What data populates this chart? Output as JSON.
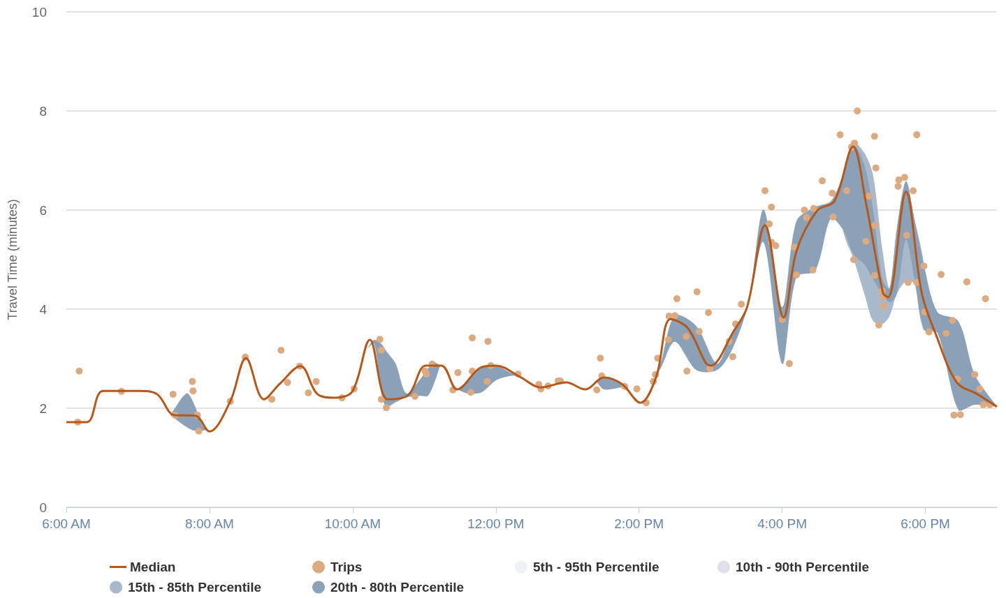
{
  "chart_data": {
    "type": "line",
    "ylabel": "Travel Time (minutes)",
    "xlim": [
      6,
      19
    ],
    "xticks": [
      {
        "value": 6,
        "label": "6:00 AM"
      },
      {
        "value": 8,
        "label": "8:00 AM"
      },
      {
        "value": 10,
        "label": "10:00 AM"
      },
      {
        "value": 12,
        "label": "12:00 PM"
      },
      {
        "value": 14,
        "label": "2:00 PM"
      },
      {
        "value": 16,
        "label": "4:00 PM"
      },
      {
        "value": 18,
        "label": "6:00 PM"
      }
    ],
    "ylim": [
      0,
      10
    ],
    "yticks": [
      0,
      2,
      4,
      6,
      8,
      10
    ],
    "grid": "y",
    "legend": "bottom",
    "series": [
      {
        "name": "Median",
        "color": "#b5581b",
        "x": [
          6.0,
          6.29,
          6.51,
          7.02,
          7.27,
          7.51,
          7.8,
          8.0,
          8.29,
          8.51,
          8.76,
          8.98,
          9.27,
          9.51,
          9.76,
          10.0,
          10.24,
          10.49,
          10.78,
          11.02,
          11.24,
          11.46,
          11.8,
          12.0,
          12.34,
          12.63,
          12.98,
          13.25,
          13.51,
          13.76,
          14.02,
          14.24,
          14.44,
          14.68,
          14.93,
          15.0,
          15.32,
          15.51,
          15.76,
          16.02,
          16.2,
          16.49,
          16.73,
          16.99,
          17.17,
          17.41,
          17.48,
          17.73,
          17.95,
          18.15,
          18.44,
          18.73,
          19.0
        ],
        "values": [
          1.72,
          1.72,
          2.35,
          2.35,
          2.28,
          1.86,
          1.85,
          1.53,
          2.14,
          3.01,
          2.18,
          2.49,
          2.85,
          2.28,
          2.21,
          2.35,
          3.38,
          2.18,
          2.27,
          2.86,
          2.86,
          2.38,
          2.83,
          2.86,
          2.63,
          2.42,
          2.52,
          2.38,
          2.62,
          2.49,
          2.11,
          2.63,
          3.8,
          3.62,
          2.92,
          2.86,
          3.55,
          4.04,
          5.69,
          3.83,
          5.17,
          5.99,
          6.18,
          7.28,
          6.15,
          4.32,
          4.24,
          6.37,
          4.32,
          3.48,
          2.52,
          2.28,
          2.03
        ]
      },
      {
        "name": "Trips",
        "type": "scatter",
        "color": "#dcaa80",
        "x": [
          6.18,
          6.16,
          6.77,
          7.49,
          7.52,
          7.76,
          7.77,
          7.83,
          7.85,
          8.29,
          8.5,
          8.87,
          9.0,
          9.09,
          9.26,
          9.38,
          9.49,
          9.85,
          10.02,
          10.38,
          10.4,
          10.4,
          10.47,
          10.87,
          11.01,
          11.03,
          11.11,
          11.4,
          11.47,
          11.67,
          11.65,
          11.67,
          11.89,
          11.88,
          11.93,
          12.31,
          12.6,
          12.63,
          12.73,
          12.87,
          12.9,
          13.41,
          13.46,
          13.48,
          13.8,
          13.97,
          14.1,
          14.2,
          14.23,
          14.26,
          14.41,
          14.42,
          14.53,
          14.5,
          14.66,
          14.67,
          14.81,
          14.84,
          14.97,
          14.99,
          15.26,
          15.31,
          15.35,
          15.43,
          15.76,
          15.85,
          15.82,
          15.85,
          15.91,
          16.0,
          16.1,
          16.17,
          16.2,
          16.31,
          16.34,
          16.43,
          16.44,
          16.56,
          16.7,
          16.71,
          16.81,
          16.9,
          16.97,
          17.01,
          17.0,
          17.05,
          17.21,
          17.17,
          17.29,
          17.31,
          17.29,
          17.29,
          17.35,
          17.4,
          17.41,
          17.42,
          17.62,
          17.63,
          17.71,
          17.74,
          17.76,
          17.83,
          17.88,
          17.88,
          17.98,
          17.99,
          18.05,
          18.22,
          18.29,
          18.38,
          18.4,
          18.45,
          18.49,
          18.58,
          18.69,
          18.76,
          18.81,
          18.84,
          18.9
        ],
        "values": [
          2.75,
          1.72,
          2.34,
          2.28,
          1.86,
          2.54,
          2.35,
          1.86,
          1.54,
          2.14,
          3.03,
          2.18,
          3.17,
          2.52,
          2.85,
          2.31,
          2.54,
          2.21,
          2.39,
          3.39,
          3.17,
          2.18,
          2.01,
          2.24,
          2.75,
          2.69,
          2.89,
          2.37,
          2.72,
          3.42,
          2.32,
          2.75,
          3.35,
          2.54,
          2.86,
          2.69,
          2.48,
          2.39,
          2.45,
          2.55,
          2.55,
          2.37,
          3.01,
          2.65,
          2.44,
          2.39,
          2.11,
          2.54,
          2.68,
          3.01,
          3.38,
          3.86,
          4.21,
          3.87,
          3.45,
          2.75,
          4.35,
          3.55,
          3.93,
          2.8,
          3.35,
          3.04,
          3.7,
          4.1,
          6.39,
          6.06,
          5.72,
          5.35,
          5.28,
          3.79,
          2.9,
          5.25,
          4.69,
          6.0,
          5.85,
          4.79,
          6.03,
          6.59,
          6.34,
          5.86,
          7.52,
          6.39,
          7.27,
          7.35,
          5.0,
          8.0,
          6.28,
          5.37,
          7.49,
          6.85,
          5.69,
          4.68,
          3.68,
          4.37,
          4.24,
          4.06,
          6.48,
          6.61,
          6.66,
          5.49,
          4.54,
          6.39,
          7.52,
          4.54,
          4.87,
          3.94,
          3.54,
          4.7,
          3.51,
          3.77,
          1.86,
          2.59,
          1.87,
          4.55,
          2.68,
          2.39,
          2.07,
          4.21,
          2.07
        ]
      },
      {
        "name": "5th - 95th Percentile",
        "type": "area",
        "color": "#eef1f5"
      },
      {
        "name": "10th - 90th Percentile",
        "type": "area",
        "color": "#dde2ea"
      },
      {
        "name": "15th - 85th Percentile",
        "type": "area",
        "color": "#a9b9cb",
        "x": [
          16.85,
          17.0,
          17.15,
          17.27,
          17.4,
          17.5,
          17.6,
          17.73,
          17.85,
          17.98
        ],
        "values": [
          null,
          null,
          null,
          null,
          null,
          null,
          null,
          null,
          null,
          null
        ],
        "lower": [
          5.6,
          5.0,
          4.3,
          3.76,
          3.7,
          3.86,
          4.3,
          4.56,
          4.5,
          3.58
        ],
        "upper": [
          6.7,
          7.35,
          7.15,
          6.7,
          5.2,
          4.42,
          5.6,
          6.58,
          5.8,
          4.89
        ]
      },
      {
        "name": "20th - 80th Percentile",
        "type": "area",
        "color": "#8aa1b8",
        "x": [
          7.45,
          7.68,
          7.78,
          7.9,
          7.96,
          8.0,
          10.2,
          10.3,
          10.4,
          10.47,
          10.6,
          10.75,
          10.95,
          11.05,
          11.15,
          11.22,
          11.46,
          11.6,
          11.8,
          12.0,
          12.2,
          12.3,
          13.4,
          13.51,
          13.76,
          13.85,
          14.2,
          14.3,
          14.5,
          14.8,
          15.09,
          15.29,
          15.51,
          15.74,
          16.0,
          16.2,
          16.46,
          16.68,
          16.85,
          17.0,
          17.15,
          17.27,
          17.4,
          17.5,
          17.6,
          17.73,
          17.85,
          17.98,
          18.17,
          18.46,
          18.69,
          19.0
        ],
        "values": [
          null,
          null,
          null,
          null,
          null,
          null,
          null,
          null,
          null,
          null,
          null,
          null,
          null,
          null,
          null,
          null,
          null,
          null,
          null,
          null,
          null,
          null,
          null,
          null,
          null,
          null,
          null,
          null,
          null,
          null,
          null,
          null,
          null,
          null,
          null,
          null,
          null,
          null,
          null,
          null,
          null,
          null,
          null,
          null,
          null,
          null,
          null,
          null,
          null,
          null,
          null,
          null
        ],
        "lower": [
          1.86,
          1.62,
          1.55,
          1.55,
          1.55,
          1.53,
          3.2,
          3.3,
          2.3,
          2.03,
          2.12,
          2.22,
          2.25,
          2.25,
          2.55,
          2.86,
          2.38,
          2.3,
          2.32,
          2.56,
          2.65,
          2.66,
          2.55,
          2.38,
          2.42,
          2.4,
          2.6,
          2.8,
          3.34,
          2.77,
          2.77,
          3.15,
          4.0,
          5.35,
          2.89,
          4.65,
          4.77,
          5.83,
          5.6,
          5.1,
          4.9,
          4.6,
          4.3,
          4.14,
          4.3,
          5.4,
          4.6,
          3.58,
          3.52,
          1.97,
          2.07,
          2.03
        ],
        "upper": [
          1.86,
          2.3,
          2.1,
          1.65,
          1.58,
          1.53,
          3.2,
          3.38,
          3.3,
          3.15,
          2.9,
          2.3,
          2.6,
          2.8,
          2.92,
          2.86,
          2.38,
          2.55,
          2.83,
          2.86,
          2.72,
          2.66,
          2.55,
          2.62,
          2.49,
          2.4,
          2.6,
          2.9,
          3.87,
          3.66,
          2.9,
          3.5,
          4.04,
          6.01,
          4.04,
          5.78,
          6.06,
          6.18,
          6.7,
          7.3,
          6.9,
          6.0,
          4.6,
          4.42,
          5.6,
          6.58,
          5.8,
          4.89,
          3.94,
          3.76,
          2.68,
          2.03
        ]
      }
    ]
  }
}
